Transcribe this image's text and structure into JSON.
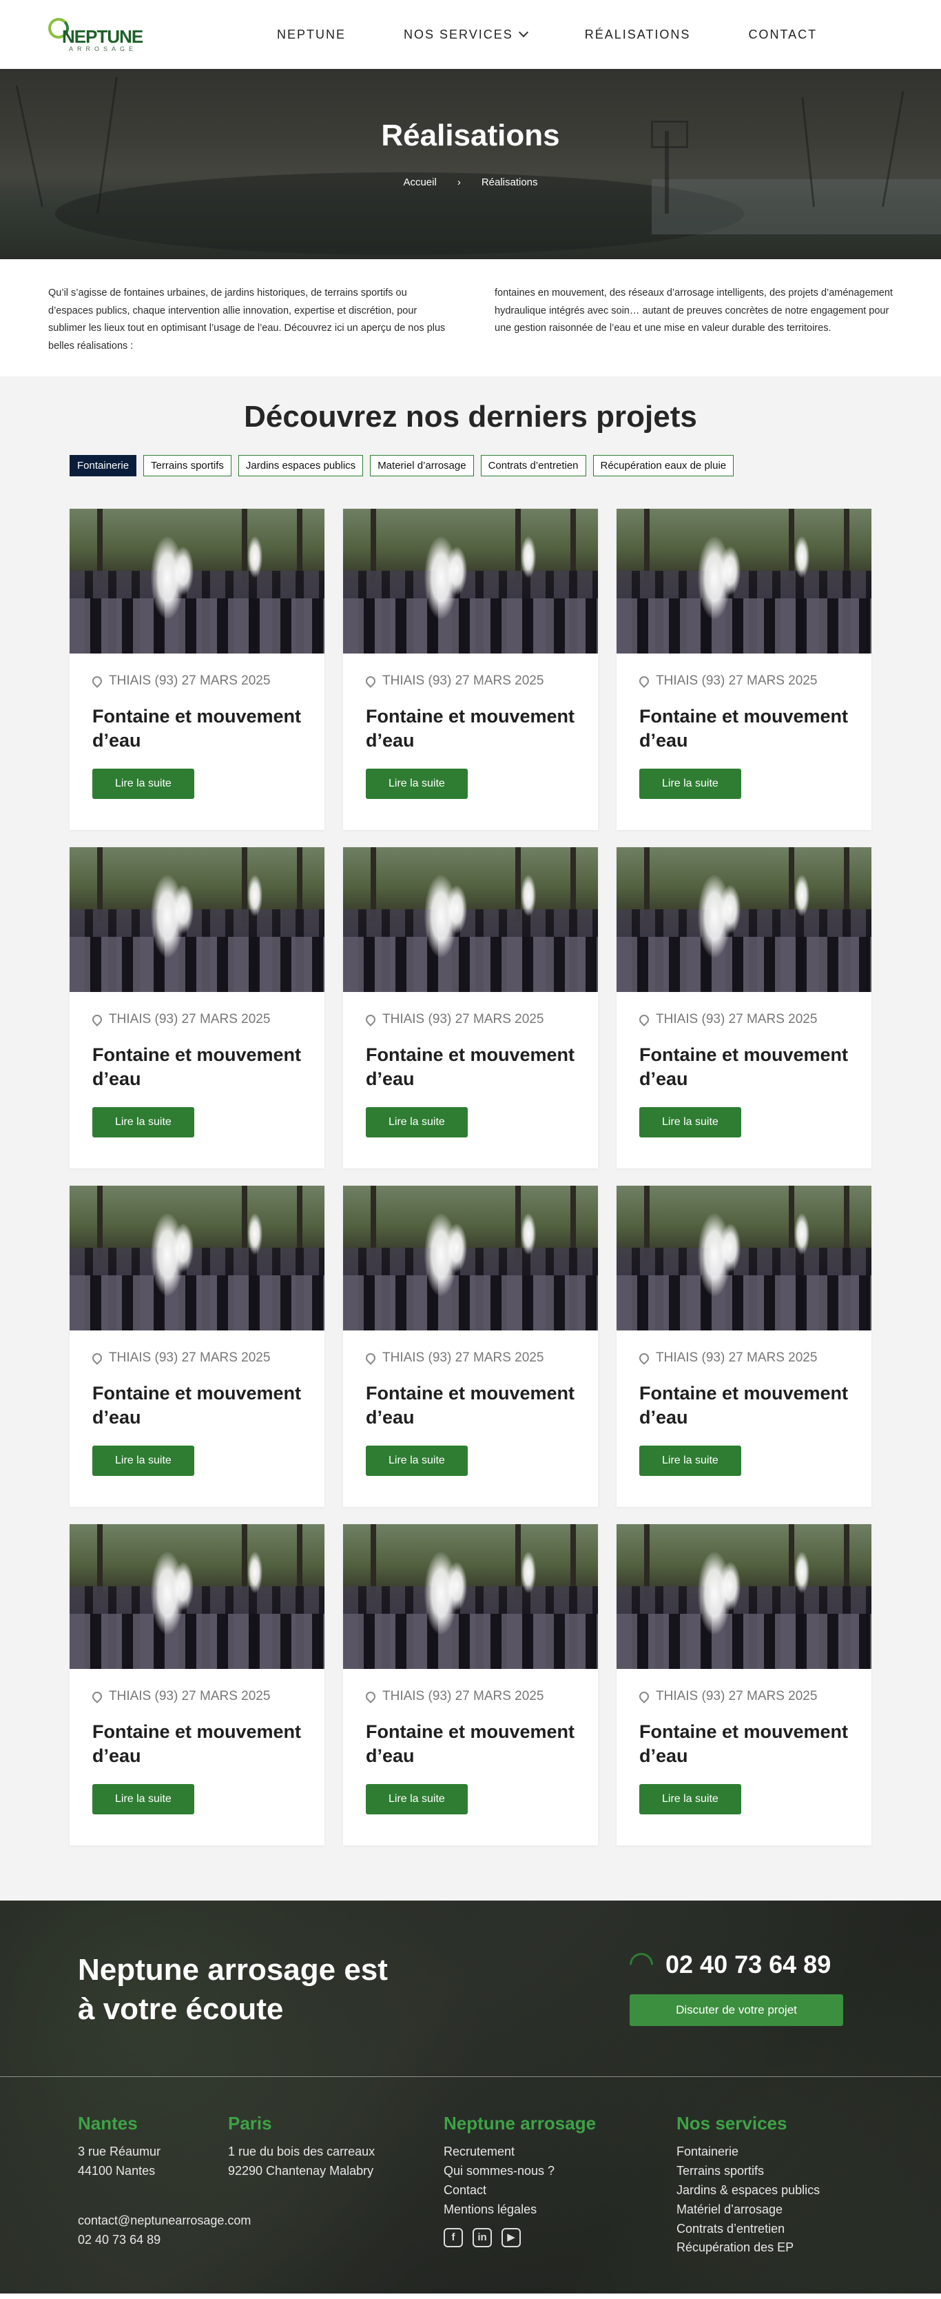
{
  "brand": {
    "name": "NEPTUNE",
    "sub": "ARROSAGE"
  },
  "nav": {
    "items": [
      "NEPTUNE",
      "NOS SERVICES",
      "RÉALISATIONS",
      "CONTACT"
    ]
  },
  "hero": {
    "title": "Réalisations",
    "breadcrumb": {
      "home": "Accueil",
      "separator": "›",
      "current": "Réalisations"
    }
  },
  "intro": {
    "left": "Qu’il s’agisse de fontaines urbaines, de jardins historiques, de terrains sportifs ou d’espaces publics, chaque intervention allie innovation, expertise et discrétion, pour sublimer les lieux tout en optimisant l’usage de l’eau. Découvrez ici un aperçu de nos plus belles réalisations :",
    "right": "fontaines en mouvement, des réseaux d’arrosage intelligents, des projets d’aménagement hydraulique intégrés avec soin… autant de preuves concrètes de notre engagement pour une gestion raisonnée de l’eau et une mise en valeur durable des territoires."
  },
  "projects": {
    "title": "Découvrez nos derniers projets",
    "filters": [
      "Fontainerie",
      "Terrains sportifs",
      "Jardins espaces publics",
      "Materiel d’arrosage",
      "Contrats d’entretien",
      "Récupération eaux  de pluie"
    ],
    "active_filter": "Fontainerie",
    "cards": [
      {
        "location": "THIAIS (93) 27 MARS 2025",
        "title": "Fontaine et mouvement d’eau",
        "button": "Lire la suite"
      },
      {
        "location": "THIAIS (93) 27 MARS 2025",
        "title": "Fontaine et mouvement d’eau",
        "button": "Lire la suite"
      },
      {
        "location": "THIAIS (93) 27 MARS 2025",
        "title": "Fontaine et mouvement d’eau",
        "button": "Lire la suite"
      },
      {
        "location": "THIAIS (93) 27 MARS 2025",
        "title": "Fontaine et mouvement d’eau",
        "button": "Lire la suite"
      },
      {
        "location": "THIAIS (93) 27 MARS 2025",
        "title": "Fontaine et mouvement d’eau",
        "button": "Lire la suite"
      },
      {
        "location": "THIAIS (93) 27 MARS 2025",
        "title": "Fontaine et mouvement d’eau",
        "button": "Lire la suite"
      },
      {
        "location": "THIAIS (93) 27 MARS 2025",
        "title": "Fontaine et mouvement d’eau",
        "button": "Lire la suite"
      },
      {
        "location": "THIAIS (93) 27 MARS 2025",
        "title": "Fontaine et mouvement d’eau",
        "button": "Lire la suite"
      },
      {
        "location": "THIAIS (93) 27 MARS 2025",
        "title": "Fontaine et mouvement d’eau",
        "button": "Lire la suite"
      },
      {
        "location": "THIAIS (93) 27 MARS 2025",
        "title": "Fontaine et mouvement d’eau",
        "button": "Lire la suite"
      },
      {
        "location": "THIAIS (93) 27 MARS 2025",
        "title": "Fontaine et mouvement d’eau",
        "button": "Lire la suite"
      },
      {
        "location": "THIAIS (93) 27 MARS 2025",
        "title": "Fontaine et mouvement d’eau",
        "button": "Lire la suite"
      }
    ]
  },
  "footer": {
    "title_line1": "Neptune arrosage est",
    "title_line2": "à votre écoute",
    "phone": "02 40 73 64 89",
    "cta": "Discuter de votre projet",
    "nantes": {
      "heading": "Nantes",
      "line1": "3 rue Réaumur",
      "line2": "44100 Nantes"
    },
    "paris": {
      "heading": "Paris",
      "line1": "1 rue du bois des carreaux",
      "line2": "92290 Chantenay Malabry"
    },
    "email": "contact@neptunearrosage.com",
    "contact_phone": "02 40 73 64 89",
    "neptune": {
      "heading": "Neptune arrosage",
      "links": [
        "Recrutement",
        "Qui sommes-nous ?",
        "Contact",
        "Mentions légales"
      ]
    },
    "services": {
      "heading": "Nos services",
      "links": [
        "Fontainerie",
        "Terrains sportifs",
        "Jardins & espaces publics",
        "Matériel d’arrosage",
        "Contrats d’entretien",
        "Récupération des EP"
      ]
    },
    "social_icons": [
      "facebook-icon",
      "linkedin-icon",
      "youtube-icon"
    ]
  },
  "colors": {
    "accent_green": "#2e7d32",
    "heading_green": "#3da346",
    "navy": "#0a1e3c"
  }
}
